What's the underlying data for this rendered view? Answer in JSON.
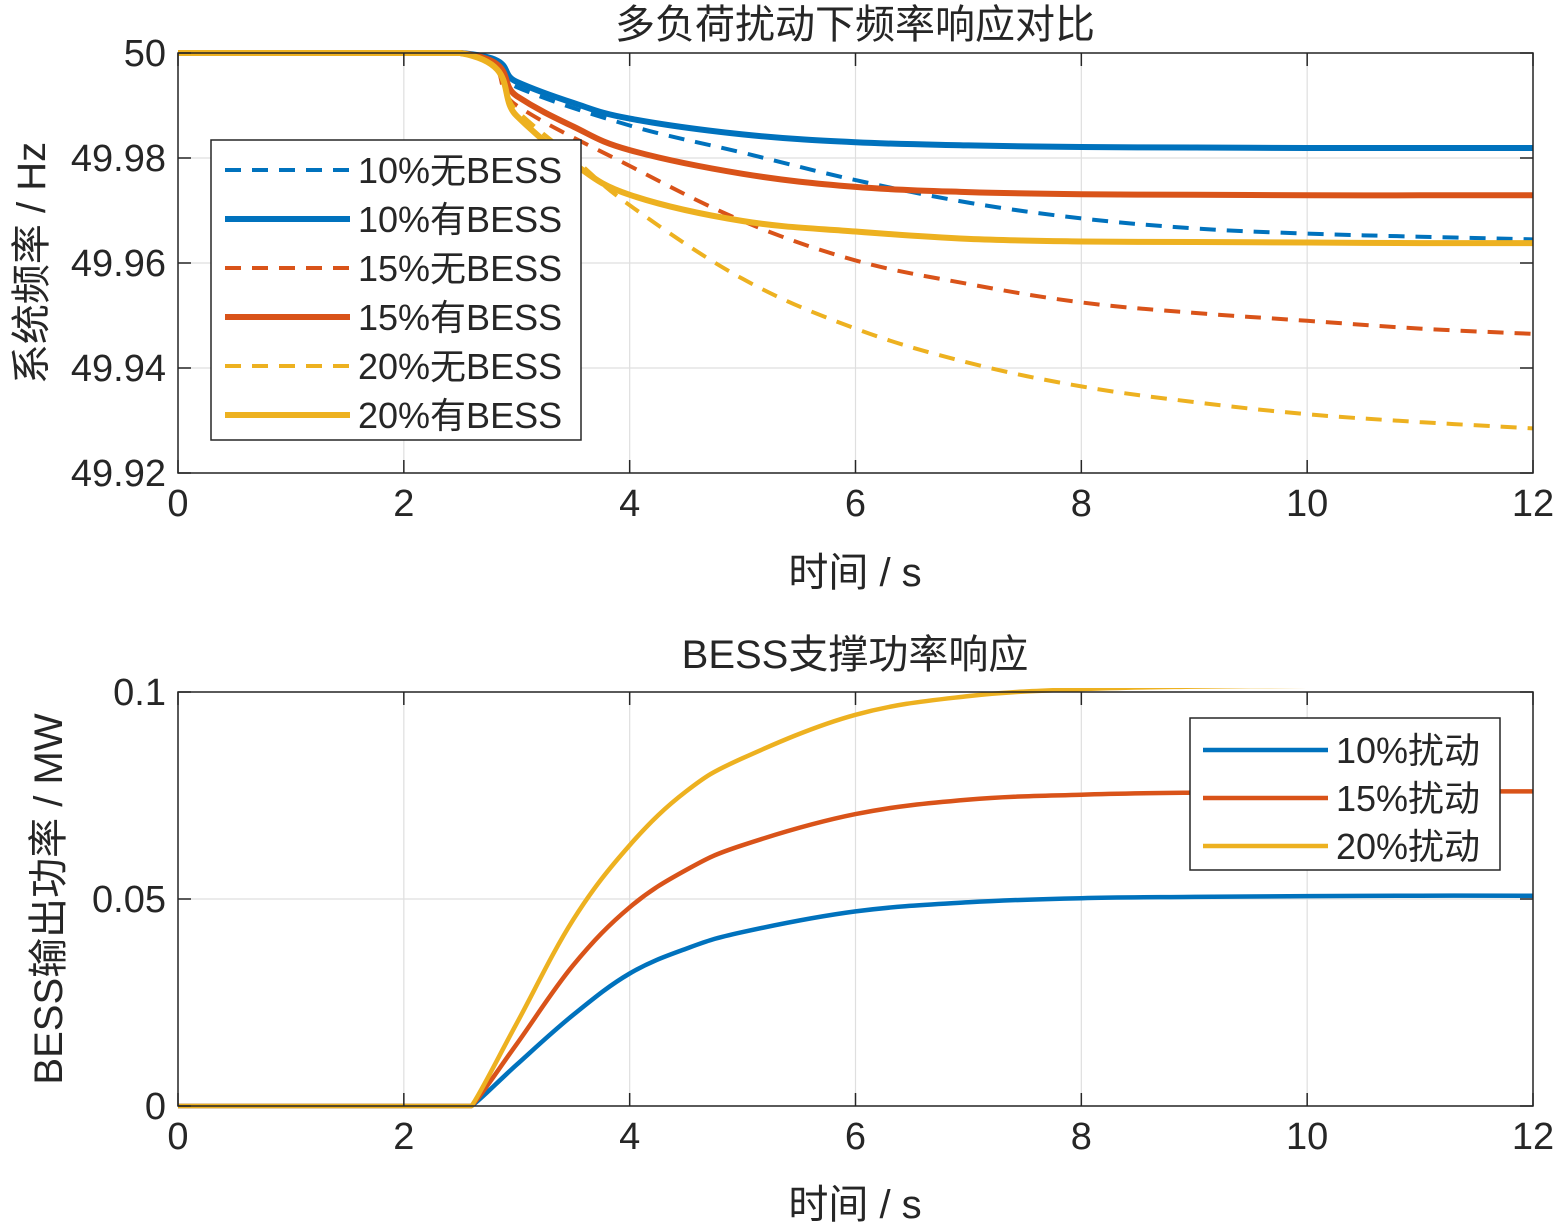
{
  "chart_data": [
    {
      "type": "line",
      "title": "多负荷扰动下频率响应对比",
      "xlabel": "时间 / s",
      "ylabel": "系统频率 / Hz",
      "xlim": [
        0,
        12
      ],
      "ylim": [
        49.92,
        50
      ],
      "xticks": [
        "0",
        "2",
        "4",
        "6",
        "8",
        "10",
        "12"
      ],
      "yticks": [
        "49.92",
        "49.94",
        "49.96",
        "49.98",
        "50"
      ],
      "grid": true,
      "legend_position": "upper-left",
      "series": [
        {
          "name": "10%无BESS",
          "color": "#0072BD",
          "style": "dashed",
          "x": [
            0,
            2.5,
            3,
            4,
            5,
            6,
            7,
            8,
            9,
            10,
            11,
            12
          ],
          "y": [
            50,
            50,
            49.9935,
            49.9862,
            49.981,
            49.9758,
            49.9715,
            49.9685,
            49.9666,
            49.9656,
            49.965,
            49.9645
          ]
        },
        {
          "name": "10%有BESS",
          "color": "#0072BD",
          "style": "solid",
          "x": [
            0,
            2.5,
            3,
            3.5,
            4,
            5,
            6,
            7,
            8,
            9,
            10,
            11,
            12
          ],
          "y": [
            50,
            50,
            49.9945,
            49.9905,
            49.9875,
            49.9845,
            49.983,
            49.9824,
            49.9821,
            49.982,
            49.9819,
            49.9819,
            49.9819
          ]
        },
        {
          "name": "15%无BESS",
          "color": "#D95319",
          "style": "dashed",
          "x": [
            0,
            2.5,
            3,
            4,
            5,
            6,
            7,
            8,
            9,
            10,
            11,
            12
          ],
          "y": [
            50,
            50,
            49.99,
            49.9785,
            49.968,
            49.9605,
            49.956,
            49.9525,
            49.9505,
            49.949,
            49.9475,
            49.9465
          ]
        },
        {
          "name": "15%有BESS",
          "color": "#D95319",
          "style": "solid",
          "x": [
            0,
            2.5,
            3,
            3.5,
            4,
            5,
            6,
            7,
            8,
            9,
            10,
            11,
            12
          ],
          "y": [
            50,
            50,
            49.9918,
            49.986,
            49.9815,
            49.977,
            49.9745,
            49.9735,
            49.9731,
            49.973,
            49.9729,
            49.9729,
            49.9729
          ]
        },
        {
          "name": "20%无BESS",
          "color": "#EDB120",
          "style": "dashed",
          "x": [
            0,
            2.5,
            3,
            3.5,
            4,
            5,
            6,
            7,
            8,
            9,
            10,
            11,
            12
          ],
          "y": [
            50,
            50,
            49.989,
            49.98,
            49.971,
            49.957,
            49.9475,
            49.941,
            49.9365,
            49.9335,
            49.9312,
            49.9297,
            49.9285
          ]
        },
        {
          "name": "20%有BESS",
          "color": "#EDB120",
          "style": "solid",
          "x": [
            0,
            2.5,
            3,
            3.5,
            4,
            5,
            6,
            7,
            8,
            9,
            10,
            11,
            12
          ],
          "y": [
            50,
            50,
            49.988,
            49.979,
            49.973,
            49.968,
            49.966,
            49.9646,
            49.9641,
            49.964,
            49.9639,
            49.9638,
            49.9638
          ]
        }
      ]
    },
    {
      "type": "line",
      "title": "BESS支撑功率响应",
      "xlabel": "时间 / s",
      "ylabel": "BESS输出功率 / MW",
      "xlim": [
        0,
        12
      ],
      "ylim": [
        0,
        0.1
      ],
      "xticks": [
        "0",
        "2",
        "4",
        "6",
        "8",
        "10",
        "12"
      ],
      "yticks": [
        "0",
        "0.05",
        "0.1"
      ],
      "grid": true,
      "legend_position": "upper-right",
      "series": [
        {
          "name": "10%扰动",
          "color": "#0072BD",
          "style": "solid",
          "x": [
            0,
            2.5,
            2.6,
            3,
            3.5,
            4,
            4.5,
            5,
            6,
            7,
            8,
            9,
            10,
            11,
            12
          ],
          "y": [
            0,
            0,
            0,
            0.01,
            0.022,
            0.032,
            0.038,
            0.042,
            0.047,
            0.0492,
            0.0502,
            0.0505,
            0.0507,
            0.0508,
            0.0508
          ]
        },
        {
          "name": "15%扰动",
          "color": "#D95319",
          "style": "solid",
          "x": [
            0,
            2.5,
            2.6,
            3,
            3.5,
            4,
            4.5,
            5,
            6,
            7,
            8,
            9,
            10,
            11,
            12
          ],
          "y": [
            0,
            0,
            0,
            0.015,
            0.034,
            0.048,
            0.057,
            0.063,
            0.0705,
            0.074,
            0.0752,
            0.0757,
            0.0759,
            0.076,
            0.076
          ]
        },
        {
          "name": "20%扰动",
          "color": "#EDB120",
          "style": "solid",
          "x": [
            0,
            2.5,
            2.6,
            3,
            3.5,
            4,
            4.5,
            5,
            6,
            7,
            8,
            9,
            10,
            11,
            12
          ],
          "y": [
            0,
            0,
            0,
            0.02,
            0.045,
            0.063,
            0.076,
            0.084,
            0.0945,
            0.099,
            0.1007,
            0.1013,
            0.1015,
            0.1016,
            0.1016
          ]
        }
      ]
    }
  ]
}
